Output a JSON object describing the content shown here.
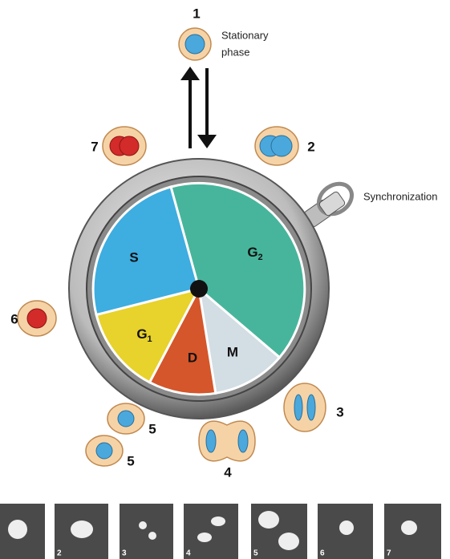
{
  "top": {
    "number": "1",
    "text": [
      "Stationary",
      "phase"
    ]
  },
  "cells": [
    "2",
    "3",
    "4",
    "5",
    "5",
    "6",
    "7"
  ],
  "synchronization": "Synchronization",
  "phases": [
    {
      "letter": "S"
    },
    {
      "letter": "G",
      "sub": "2"
    },
    {
      "letter": "G",
      "sub": "1"
    },
    {
      "letter": "D"
    },
    {
      "letter": "M"
    }
  ],
  "photos": [
    "2",
    "3",
    "4",
    "5",
    "6",
    "7"
  ]
}
